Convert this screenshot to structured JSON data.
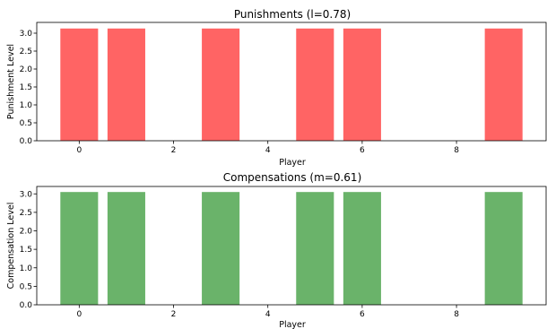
{
  "chart_data": [
    {
      "type": "bar",
      "title": "Punishments (l=0.78)",
      "xlabel": "Player",
      "ylabel": "Punishment Level",
      "x": [
        0,
        1,
        3,
        5,
        6,
        9
      ],
      "values": [
        3.13,
        3.13,
        3.13,
        3.13,
        3.13,
        3.13
      ],
      "xlim": [
        -0.9,
        9.9
      ],
      "ylim": [
        0,
        3.3
      ],
      "xticks": [
        0,
        2,
        4,
        6,
        8
      ],
      "yticks": [
        "0.0",
        "0.5",
        "1.0",
        "1.5",
        "2.0",
        "2.5",
        "3.0"
      ],
      "color": "#ff6464",
      "grid": false
    },
    {
      "type": "bar",
      "title": "Compensations (m=0.61)",
      "xlabel": "Player",
      "ylabel": "Compensation Level",
      "x": [
        0,
        1,
        3,
        5,
        6,
        9
      ],
      "values": [
        3.05,
        3.05,
        3.05,
        3.05,
        3.05,
        3.05
      ],
      "xlim": [
        -0.9,
        9.9
      ],
      "ylim": [
        0,
        3.2
      ],
      "xticks": [
        0,
        2,
        4,
        6,
        8
      ],
      "yticks": [
        "0.0",
        "0.5",
        "1.0",
        "1.5",
        "2.0",
        "2.5",
        "3.0"
      ],
      "color": "#6ab36a",
      "grid": false
    }
  ]
}
